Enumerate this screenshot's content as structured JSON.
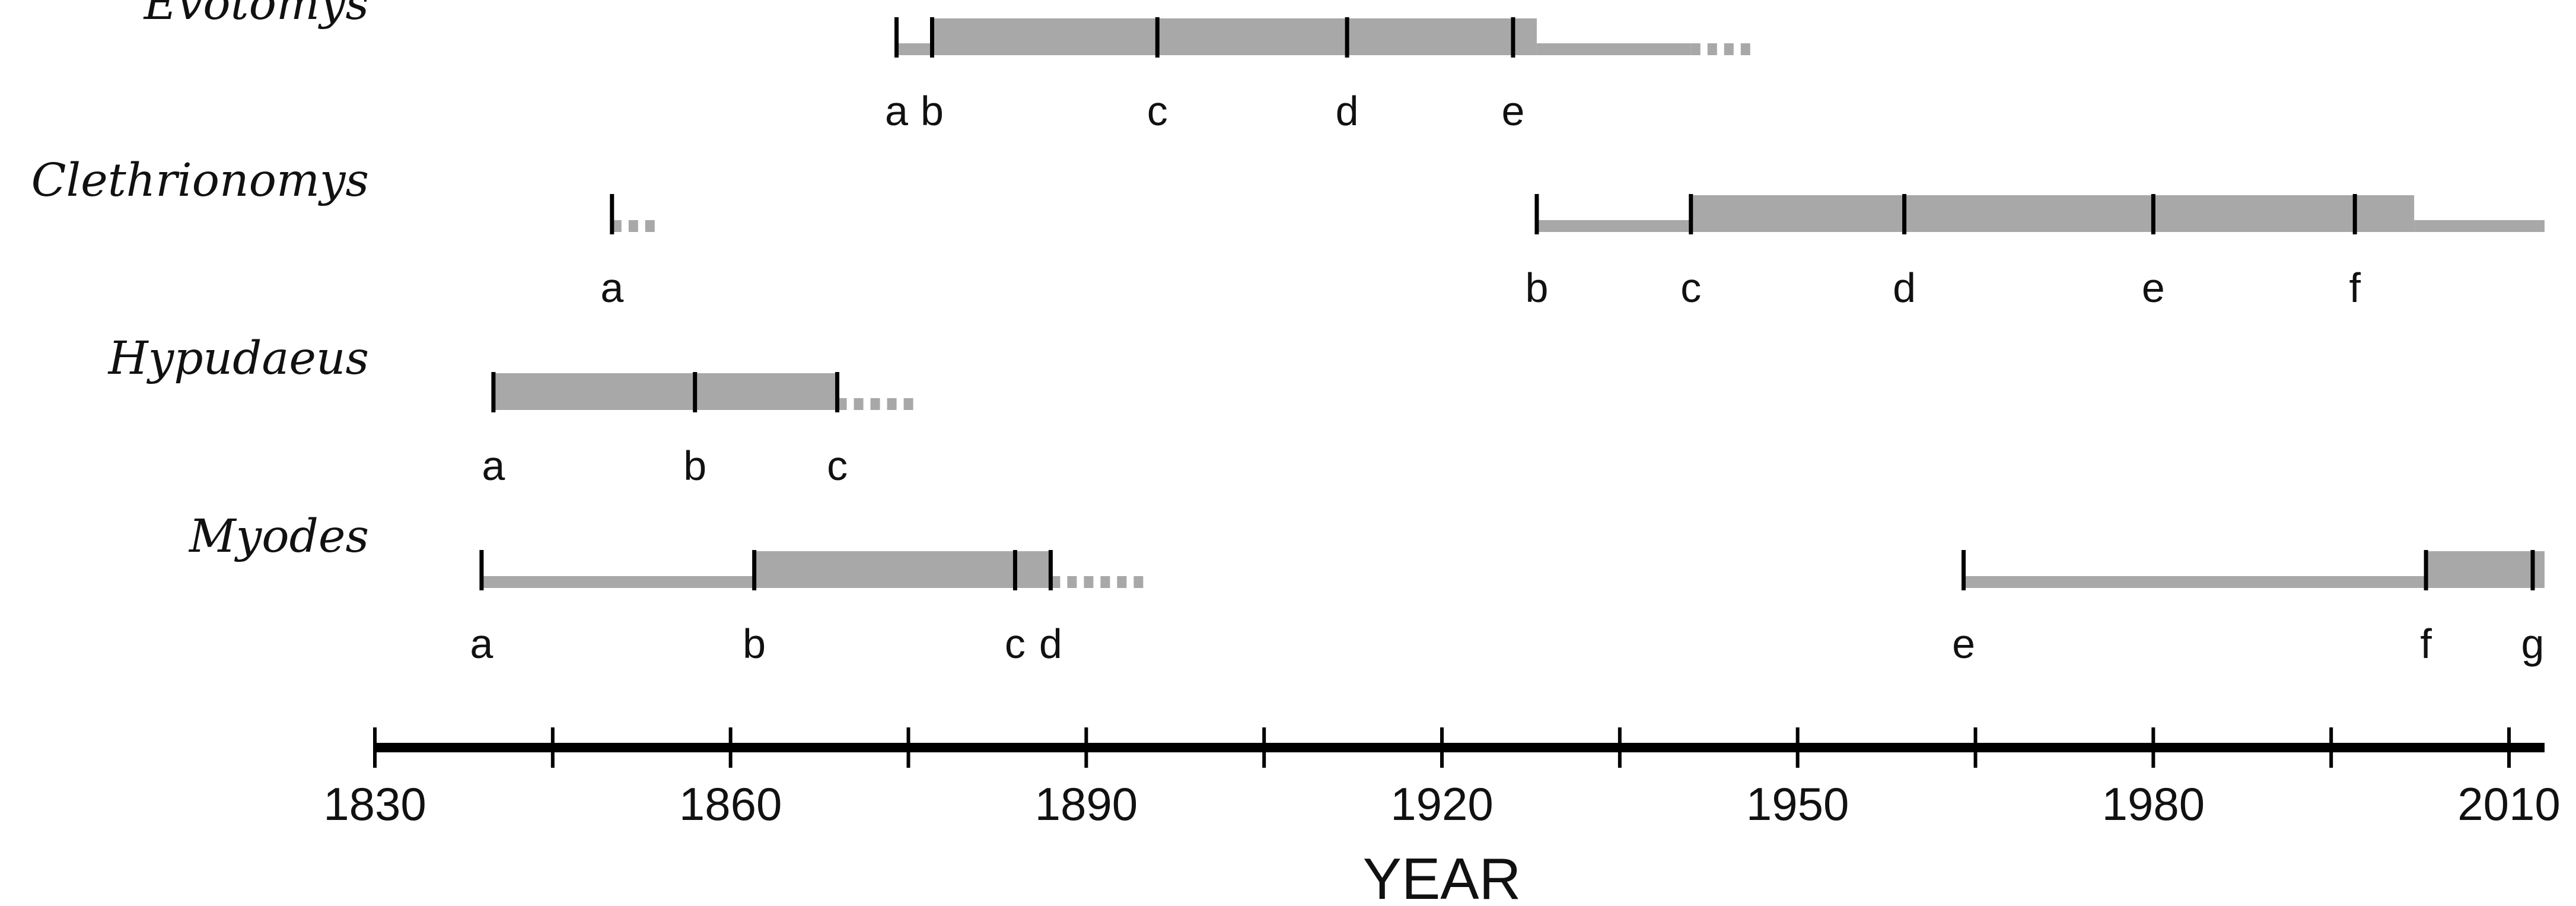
{
  "chart_data": {
    "type": "timeline",
    "xlabel": "YEAR",
    "xlim": [
      1830,
      2013
    ],
    "xticks": [
      1830,
      1860,
      1890,
      1920,
      1950,
      1980,
      2010
    ],
    "minor_tick_step": 15,
    "grid": false,
    "colors": {
      "bar": "#a8a8a8",
      "axis": "#000000",
      "event": "#000000"
    },
    "rows": [
      {
        "name": "Evotomys",
        "segments": [
          {
            "start": 1874,
            "end": 1877,
            "weight": "thin"
          },
          {
            "start": 1877,
            "end": 1928,
            "weight": "thick"
          },
          {
            "start": 1928,
            "end": 1941,
            "weight": "thin"
          }
        ],
        "dotted": [
          1941,
          1944
        ],
        "events": [
          {
            "label": "a",
            "year": 1874
          },
          {
            "label": "b",
            "year": 1877
          },
          {
            "label": "c",
            "year": 1896
          },
          {
            "label": "d",
            "year": 1912
          },
          {
            "label": "e",
            "year": 1926
          }
        ]
      },
      {
        "name": "Clethrionomys",
        "segments": [
          {
            "start": 1928,
            "end": 1941,
            "weight": "thin"
          },
          {
            "start": 1941,
            "end": 2002,
            "weight": "thick"
          },
          {
            "start": 2002,
            "end": 2013,
            "weight": "thin"
          }
        ],
        "dotted": [
          1850,
          1852
        ],
        "events": [
          {
            "label": "a",
            "year": 1850
          },
          {
            "label": "b",
            "year": 1928
          },
          {
            "label": "c",
            "year": 1941
          },
          {
            "label": "d",
            "year": 1959
          },
          {
            "label": "e",
            "year": 1980
          },
          {
            "label": "f",
            "year": 1997
          }
        ]
      },
      {
        "name": "Hypudaeus",
        "segments": [
          {
            "start": 1840,
            "end": 1869,
            "weight": "thick"
          }
        ],
        "dotted": [
          1869,
          1874
        ],
        "events": [
          {
            "label": "a",
            "year": 1840
          },
          {
            "label": "b",
            "year": 1857
          },
          {
            "label": "c",
            "year": 1869
          }
        ]
      },
      {
        "name": "Myodes",
        "segments": [
          {
            "start": 1839,
            "end": 1862,
            "weight": "thin"
          },
          {
            "start": 1862,
            "end": 1887,
            "weight": "thick"
          },
          {
            "start": 1964,
            "end": 2003,
            "weight": "thin"
          },
          {
            "start": 2003,
            "end": 2013,
            "weight": "thick"
          }
        ],
        "dotted": [
          1887,
          1893
        ],
        "events": [
          {
            "label": "a",
            "year": 1839
          },
          {
            "label": "b",
            "year": 1862
          },
          {
            "label": "c",
            "year": 1884
          },
          {
            "label": "d",
            "year": 1887
          },
          {
            "label": "e",
            "year": 1964
          },
          {
            "label": "f",
            "year": 2003
          },
          {
            "label": "g",
            "year": 2012
          }
        ]
      }
    ]
  }
}
